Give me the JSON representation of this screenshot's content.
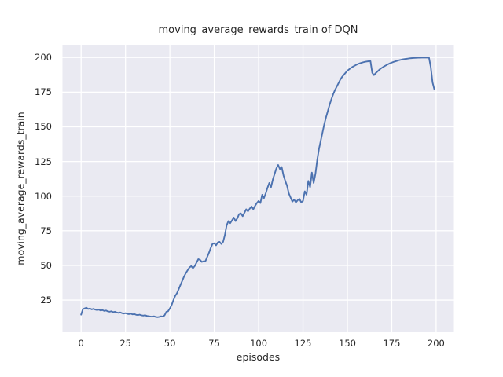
{
  "chart_data": {
    "type": "line",
    "title": "moving_average_rewards_train of DQN",
    "xlabel": "episodes",
    "ylabel": "moving_average_rewards_train",
    "x_ticks": [
      0,
      25,
      50,
      75,
      100,
      125,
      150,
      175,
      200
    ],
    "y_ticks": [
      25,
      50,
      75,
      100,
      125,
      150,
      175,
      200
    ],
    "xlim": [
      -10.5,
      210
    ],
    "ylim": [
      1.8,
      209.2
    ],
    "grid": true,
    "legend": "none",
    "colors": {
      "line": "#4c72b0",
      "plot_background": "#eaeaf2",
      "grid": "#ffffff",
      "text": "#262626",
      "figure_background": "#ffffff"
    },
    "series": [
      {
        "name": "moving_average_rewards_train",
        "x": [
          0,
          1,
          2,
          3,
          4,
          5,
          6,
          7,
          8,
          9,
          10,
          11,
          12,
          13,
          14,
          15,
          16,
          17,
          18,
          19,
          20,
          21,
          22,
          23,
          24,
          25,
          26,
          27,
          28,
          29,
          30,
          31,
          32,
          33,
          34,
          35,
          36,
          37,
          38,
          39,
          40,
          41,
          42,
          43,
          44,
          45,
          46,
          47,
          48,
          49,
          50,
          51,
          52,
          53,
          54,
          55,
          56,
          57,
          58,
          59,
          60,
          61,
          62,
          63,
          64,
          65,
          66,
          67,
          68,
          69,
          70,
          71,
          72,
          73,
          74,
          75,
          76,
          77,
          78,
          79,
          80,
          81,
          82,
          83,
          84,
          85,
          86,
          87,
          88,
          89,
          90,
          91,
          92,
          93,
          94,
          95,
          96,
          97,
          98,
          99,
          100,
          101,
          102,
          103,
          104,
          105,
          106,
          107,
          108,
          109,
          110,
          111,
          112,
          113,
          114,
          115,
          116,
          117,
          118,
          119,
          120,
          121,
          122,
          123,
          124,
          125,
          126,
          127,
          128,
          129,
          130,
          131,
          132,
          133,
          134,
          135,
          136,
          137,
          138,
          139,
          140,
          141,
          142,
          143,
          144,
          145,
          146,
          147,
          148,
          149,
          150,
          151,
          152,
          153,
          154,
          155,
          156,
          157,
          158,
          159,
          160,
          161,
          162,
          163,
          164,
          165,
          166,
          167,
          168,
          169,
          170,
          171,
          172,
          173,
          174,
          175,
          176,
          177,
          178,
          179,
          180,
          181,
          182,
          183,
          184,
          185,
          186,
          187,
          188,
          189,
          190,
          191,
          192,
          193,
          194,
          195,
          196,
          197,
          198,
          199
        ],
        "y": [
          14.5,
          18.5,
          19,
          19.5,
          18.6,
          18.9,
          18.3,
          18.7,
          18.1,
          17.8,
          18.1,
          17.5,
          17.8,
          17.2,
          17.5,
          16.9,
          16.6,
          16.9,
          16.3,
          16.6,
          16.1,
          15.8,
          16.1,
          15.6,
          15.3,
          15.6,
          15.1,
          14.9,
          15.2,
          14.7,
          14.9,
          14.4,
          14.2,
          14.5,
          14,
          13.8,
          14.1,
          13.6,
          13.4,
          13.2,
          13,
          13.3,
          12.9,
          12.7,
          12.9,
          13.3,
          13.1,
          14,
          16.5,
          17,
          19,
          21.5,
          25,
          28,
          30,
          33,
          36,
          39,
          42,
          44.5,
          46.5,
          48.5,
          49.5,
          48,
          49.5,
          52,
          54.5,
          54,
          52.5,
          53,
          53,
          56,
          59,
          62.5,
          65.5,
          66,
          64.5,
          66.5,
          67,
          65.5,
          67,
          72,
          79,
          82,
          80.5,
          82.5,
          84.5,
          82,
          84,
          87,
          87.5,
          85.5,
          88,
          90.5,
          89,
          91,
          92.5,
          90.5,
          93,
          95,
          96.5,
          95,
          101,
          98.5,
          102,
          106,
          109.5,
          106.5,
          112,
          116,
          120,
          122.5,
          119.5,
          121,
          115,
          111,
          107.5,
          102,
          99,
          96,
          97.5,
          95.5,
          97,
          98,
          95.5,
          96.5,
          103.5,
          101,
          111,
          106.5,
          117,
          109.5,
          116,
          126,
          134,
          140,
          146,
          152,
          157,
          161.5,
          166,
          170,
          173.5,
          176.5,
          179,
          181.5,
          184,
          186,
          187.5,
          189,
          190.5,
          191.5,
          192.5,
          193.3,
          194,
          194.7,
          195.3,
          195.8,
          196.2,
          196.6,
          196.9,
          197.1,
          197.3,
          197.4,
          189,
          187.3,
          188.8,
          190,
          191.2,
          192.2,
          193,
          193.8,
          194.5,
          195.2,
          195.8,
          196.3,
          196.8,
          197.2,
          197.6,
          198,
          198.3,
          198.6,
          198.8,
          199,
          199.2,
          199.4,
          199.5,
          199.6,
          199.7,
          199.75,
          199.8,
          199.85,
          199.9,
          199.9,
          199.9,
          199.9,
          199.9,
          193,
          182,
          177
        ]
      }
    ]
  }
}
